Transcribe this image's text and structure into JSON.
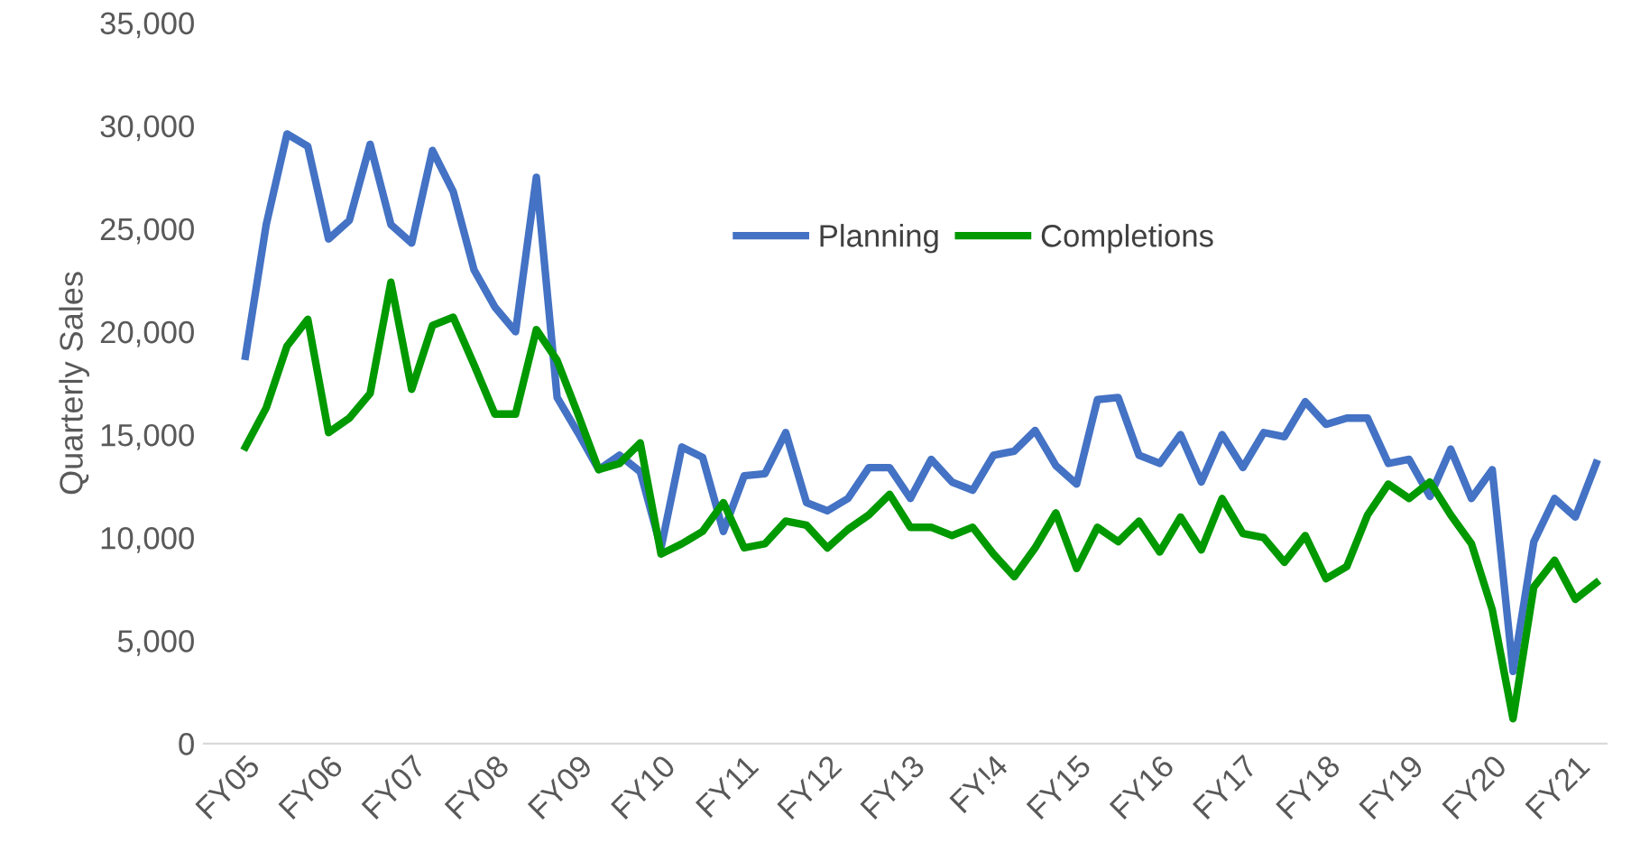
{
  "chart_data": {
    "type": "line",
    "ylabel": "Quarterly Sales",
    "categories": [
      "FY05",
      null,
      null,
      null,
      "FY06",
      null,
      null,
      null,
      "FY07",
      null,
      null,
      null,
      "FY08",
      null,
      null,
      null,
      "FY09",
      null,
      null,
      null,
      "FY10",
      null,
      null,
      null,
      "FY11",
      null,
      null,
      null,
      "FY12",
      null,
      null,
      null,
      "FY13",
      null,
      null,
      null,
      "FY!4",
      null,
      null,
      null,
      "FY15",
      null,
      null,
      null,
      "FY16",
      null,
      null,
      null,
      "FY17",
      null,
      null,
      null,
      "FY18",
      null,
      null,
      null,
      "FY19",
      null,
      null,
      null,
      "FY20",
      null,
      null,
      null,
      "FY21",
      null
    ],
    "series": [
      {
        "name": "Planning",
        "color": "#4472c4",
        "values": [
          18800,
          25200,
          29600,
          29000,
          24500,
          25400,
          29100,
          25200,
          24300,
          28800,
          26800,
          23000,
          21200,
          20000,
          27500,
          16800,
          15100,
          13300,
          14000,
          13200,
          9500,
          14400,
          13900,
          10300,
          13000,
          13100,
          15100,
          11700,
          11300,
          11900,
          13400,
          13400,
          11900,
          13800,
          12700,
          12300,
          14000,
          14200,
          15200,
          13500,
          12600,
          16700,
          16800,
          14000,
          13600,
          15000,
          12700,
          15000,
          13400,
          15100,
          14900,
          16600,
          15500,
          15800,
          15800,
          13600,
          13800,
          12000,
          14300,
          11900,
          13300,
          3500,
          9800,
          11900,
          11000,
          13600
        ]
      },
      {
        "name": "Completions",
        "color": "#009900",
        "values": [
          14400,
          16300,
          19300,
          20600,
          15100,
          15800,
          17000,
          22400,
          17200,
          20300,
          20700,
          18400,
          16000,
          16000,
          20100,
          18600,
          16000,
          13300,
          13600,
          14600,
          9200,
          9700,
          10300,
          11700,
          9500,
          9700,
          10800,
          10600,
          9500,
          10400,
          11100,
          12100,
          10500,
          10500,
          10100,
          10500,
          9200,
          8100,
          9500,
          11200,
          8500,
          10500,
          9800,
          10800,
          9300,
          11000,
          9400,
          11900,
          10200,
          10000,
          8800,
          10100,
          8000,
          8600,
          11100,
          12600,
          11900,
          12700,
          11100,
          9700,
          6500,
          1200,
          7600,
          8900,
          7000,
          7800
        ]
      }
    ],
    "ylim": [
      0,
      35000
    ],
    "yticks": [
      {
        "value": 0,
        "label": "0"
      },
      {
        "value": 5000,
        "label": "5,000"
      },
      {
        "value": 10000,
        "label": "10,000"
      },
      {
        "value": 15000,
        "label": "15,000"
      },
      {
        "value": 20000,
        "label": "20,000"
      },
      {
        "value": 25000,
        "label": "25,000"
      },
      {
        "value": 30000,
        "label": "30,000"
      },
      {
        "value": 35000,
        "label": "35,000"
      }
    ],
    "grid": false,
    "legend": "top",
    "line_style": "solid",
    "marker": "none"
  }
}
